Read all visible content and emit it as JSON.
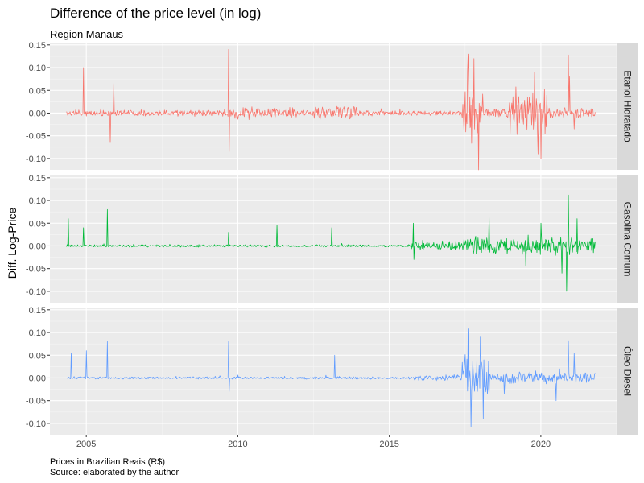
{
  "chart_data": {
    "type": "line",
    "title": "Difference of the price level (in log)",
    "subtitle": "Region Manaus",
    "ylabel": "Diff. Log-Price",
    "xlabel": "",
    "caption_line1": "Prices in Brazilian Reais (R$)",
    "caption_line2": "Source: elaborated by the author",
    "x_range": [
      2004.35,
      2021.8
    ],
    "xlim": [
      2003.8,
      2022.5
    ],
    "x_ticks": [
      2005,
      2010,
      2015,
      2020
    ],
    "ylim": [
      -0.125,
      0.155
    ],
    "y_ticks": [
      -0.1,
      -0.05,
      0.0,
      0.05,
      0.1,
      0.15
    ],
    "y_tick_labels": [
      "-0.10",
      "-0.05",
      "0.00",
      "0.05",
      "0.10",
      "0.15"
    ],
    "grid": true,
    "legend": "none",
    "series": [
      {
        "name": "Etanol Hidratado",
        "color": "#F8766D",
        "noise": [
          {
            "from": 2004.35,
            "to": 2015.5,
            "amp": 0.008
          },
          {
            "from": 2009.9,
            "to": 2011.9,
            "amp": 0.016
          },
          {
            "from": 2012.5,
            "to": 2014.0,
            "amp": 0.016
          },
          {
            "from": 2015.5,
            "to": 2017.4,
            "amp": 0.006
          },
          {
            "from": 2017.4,
            "to": 2018.1,
            "amp": 0.08
          },
          {
            "from": 2018.1,
            "to": 2018.9,
            "amp": 0.012
          },
          {
            "from": 2018.9,
            "to": 2020.2,
            "amp": 0.055
          },
          {
            "from": 2020.2,
            "to": 2021.8,
            "amp": 0.012
          }
        ],
        "spikes": [
          {
            "x": 2004.9,
            "y": 0.1
          },
          {
            "x": 2005.8,
            "y": -0.065
          },
          {
            "x": 2005.9,
            "y": 0.065
          },
          {
            "x": 2009.7,
            "y": 0.14
          },
          {
            "x": 2009.72,
            "y": -0.085
          },
          {
            "x": 2017.6,
            "y": 0.13
          },
          {
            "x": 2017.8,
            "y": 0.12
          },
          {
            "x": 2017.95,
            "y": -0.125
          },
          {
            "x": 2019.8,
            "y": 0.09
          },
          {
            "x": 2019.9,
            "y": -0.09
          },
          {
            "x": 2020.0,
            "y": -0.1
          },
          {
            "x": 2020.9,
            "y": 0.128
          },
          {
            "x": 2020.95,
            "y": 0.08
          },
          {
            "x": 2021.1,
            "y": -0.035
          }
        ]
      },
      {
        "name": "Gasolina Comum",
        "color": "#00BA38",
        "noise": [
          {
            "from": 2004.35,
            "to": 2015.7,
            "amp": 0.003
          },
          {
            "from": 2015.7,
            "to": 2017.4,
            "amp": 0.012
          },
          {
            "from": 2017.4,
            "to": 2021.8,
            "amp": 0.022
          }
        ],
        "spikes": [
          {
            "x": 2004.4,
            "y": 0.06
          },
          {
            "x": 2004.9,
            "y": 0.04
          },
          {
            "x": 2005.7,
            "y": 0.08
          },
          {
            "x": 2009.7,
            "y": 0.03
          },
          {
            "x": 2011.3,
            "y": 0.045
          },
          {
            "x": 2013.1,
            "y": 0.04
          },
          {
            "x": 2015.8,
            "y": 0.05
          },
          {
            "x": 2015.82,
            "y": -0.03
          },
          {
            "x": 2018.3,
            "y": 0.065
          },
          {
            "x": 2019.5,
            "y": -0.045
          },
          {
            "x": 2020.0,
            "y": 0.05
          },
          {
            "x": 2020.7,
            "y": -0.06
          },
          {
            "x": 2020.85,
            "y": -0.1
          },
          {
            "x": 2020.9,
            "y": 0.112
          },
          {
            "x": 2021.2,
            "y": 0.06
          }
        ]
      },
      {
        "name": "Óleo Diesel",
        "color": "#619CFF",
        "noise": [
          {
            "from": 2004.35,
            "to": 2015.8,
            "amp": 0.003
          },
          {
            "from": 2015.8,
            "to": 2017.4,
            "amp": 0.008
          },
          {
            "from": 2017.4,
            "to": 2018.3,
            "amp": 0.06
          },
          {
            "from": 2018.3,
            "to": 2021.8,
            "amp": 0.016
          }
        ],
        "spikes": [
          {
            "x": 2004.5,
            "y": 0.055
          },
          {
            "x": 2005.0,
            "y": 0.06
          },
          {
            "x": 2005.7,
            "y": 0.08
          },
          {
            "x": 2009.7,
            "y": 0.08
          },
          {
            "x": 2009.72,
            "y": -0.03
          },
          {
            "x": 2013.2,
            "y": 0.05
          },
          {
            "x": 2017.6,
            "y": 0.108
          },
          {
            "x": 2017.7,
            "y": -0.108
          },
          {
            "x": 2018.0,
            "y": 0.09
          },
          {
            "x": 2018.1,
            "y": -0.09
          },
          {
            "x": 2018.8,
            "y": -0.035
          },
          {
            "x": 2020.5,
            "y": -0.05
          },
          {
            "x": 2020.9,
            "y": 0.082
          },
          {
            "x": 2021.1,
            "y": 0.055
          }
        ]
      }
    ]
  }
}
